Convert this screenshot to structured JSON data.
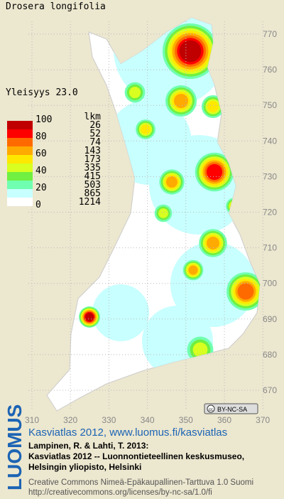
{
  "title": "Drosera longifolia",
  "frequency": "Yleisyys  23.0",
  "legend": {
    "scale_labels": [
      100,
      80,
      60,
      40,
      20,
      0
    ],
    "count_header": "lkm",
    "counts": [
      26,
      52,
      74,
      143,
      173,
      335,
      415,
      503,
      865,
      1214
    ],
    "colors": [
      "#c00000",
      "#ff0000",
      "#ff6a00",
      "#ffaa00",
      "#ffe800",
      "#d8ff20",
      "#70f040",
      "#70ffb0",
      "#c8ffff",
      "#ffffff"
    ]
  },
  "x_ticks": [
    310,
    320,
    330,
    340,
    350,
    360,
    370
  ],
  "y_ticks": [
    770,
    760,
    750,
    740,
    730,
    720,
    710,
    700,
    690,
    680,
    670
  ],
  "badge": "BY-NC-SA",
  "logo": "LUOMUS",
  "source": "Kasviatlas 2012, www.luomus.fi/kasviatlas",
  "citation": [
    "Lampinen, R. & Lahti, T. 2013:",
    "Kasviatlas 2012 -- Luonnontieteellinen keskusmuseo,",
    "Helsingin yliopisto, Helsinki"
  ],
  "license": [
    "Creative Commons Nimeä-Epäkaupallinen-Tarttuva 1.0 Suomi",
    "http://creativecommons.org/licenses/by-nc-sa/1.0/fi"
  ]
}
